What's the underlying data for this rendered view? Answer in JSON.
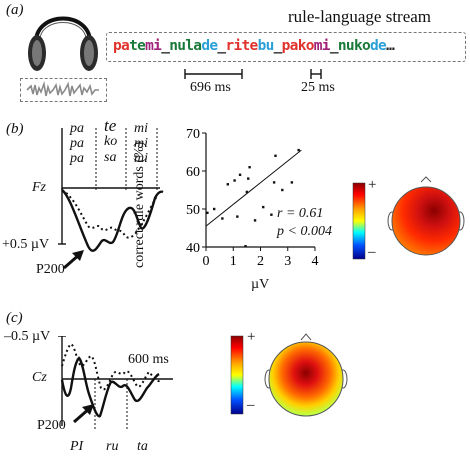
{
  "panel_a": {
    "label": "(a)",
    "title": "rule-language stream",
    "stream": [
      {
        "text": "pa",
        "color": "#e0322c"
      },
      {
        "text": "te",
        "color": "#1a7a3a"
      },
      {
        "text": "mi",
        "color": "#a0227a"
      },
      {
        "text": "_",
        "color": "#222222"
      },
      {
        "text": "nu",
        "color": "#1a7a3a"
      },
      {
        "text": "la",
        "color": "#1a7a3a"
      },
      {
        "text": "de",
        "color": "#2aa0d8"
      },
      {
        "text": "_",
        "color": "#222222"
      },
      {
        "text": "ri",
        "color": "#e0322c"
      },
      {
        "text": "te",
        "color": "#e0322c"
      },
      {
        "text": "bu",
        "color": "#2aa0d8"
      },
      {
        "text": "_",
        "color": "#222222"
      },
      {
        "text": "pa",
        "color": "#e0322c"
      },
      {
        "text": "ko",
        "color": "#e0322c"
      },
      {
        "text": "mi",
        "color": "#a0227a"
      },
      {
        "text": "_",
        "color": "#222222"
      },
      {
        "text": "nu",
        "color": "#1a7a3a"
      },
      {
        "text": "ko",
        "color": "#1a7a3a"
      },
      {
        "text": "de",
        "color": "#2aa0d8"
      },
      {
        "text": "…",
        "color": "#222222"
      }
    ],
    "scale_long": "696 ms",
    "scale_short": "25 ms"
  },
  "panel_b": {
    "label": "(b)",
    "syllables": [
      [
        "pa",
        "pa",
        "pa"
      ],
      [
        "te",
        "ko",
        "sa"
      ],
      [
        "mi",
        "mi",
        "mi"
      ]
    ],
    "channel": "Fz",
    "amplitude": "+0.5 µV",
    "component": "P200",
    "scatter": {
      "ylabel": "correct rule words (%)",
      "xlabel": "µV",
      "stat_r": "r = 0.61",
      "stat_p": "p < 0.004"
    },
    "colorbar_plus": "+",
    "colorbar_minus": "–"
  },
  "panel_c": {
    "label": "(c)",
    "amplitude": "–0.5 µV",
    "time_mark": "600 ms",
    "channel": "Cz",
    "component": "P200",
    "syllables": [
      "PI",
      "ru",
      "ta"
    ],
    "colorbar_plus": "+",
    "colorbar_minus": "–"
  },
  "chart_data": {
    "type": "scatter",
    "xlabel": "µV",
    "ylabel": "correct rule words (%)",
    "xlim": [
      0,
      4
    ],
    "ylim": [
      40,
      70
    ],
    "xticks": [
      0,
      1,
      2,
      3,
      4
    ],
    "yticks": [
      40,
      50,
      60,
      70
    ],
    "points": [
      [
        0.05,
        49.0
      ],
      [
        0.3,
        50.0
      ],
      [
        0.6,
        47.5
      ],
      [
        0.8,
        56.5
      ],
      [
        1.05,
        57.5
      ],
      [
        1.15,
        48.0
      ],
      [
        1.25,
        59.0
      ],
      [
        1.45,
        40.2
      ],
      [
        1.5,
        54.5
      ],
      [
        1.55,
        58.0
      ],
      [
        1.6,
        61.0
      ],
      [
        1.8,
        47.0
      ],
      [
        2.1,
        50.5
      ],
      [
        2.4,
        48.5
      ],
      [
        2.5,
        57.0
      ],
      [
        2.55,
        64.0
      ],
      [
        2.8,
        55.0
      ],
      [
        3.15,
        57.0
      ],
      [
        3.4,
        65.5
      ]
    ],
    "fit": {
      "x": [
        0,
        3.5
      ],
      "y": [
        45.5,
        65.5
      ]
    }
  }
}
